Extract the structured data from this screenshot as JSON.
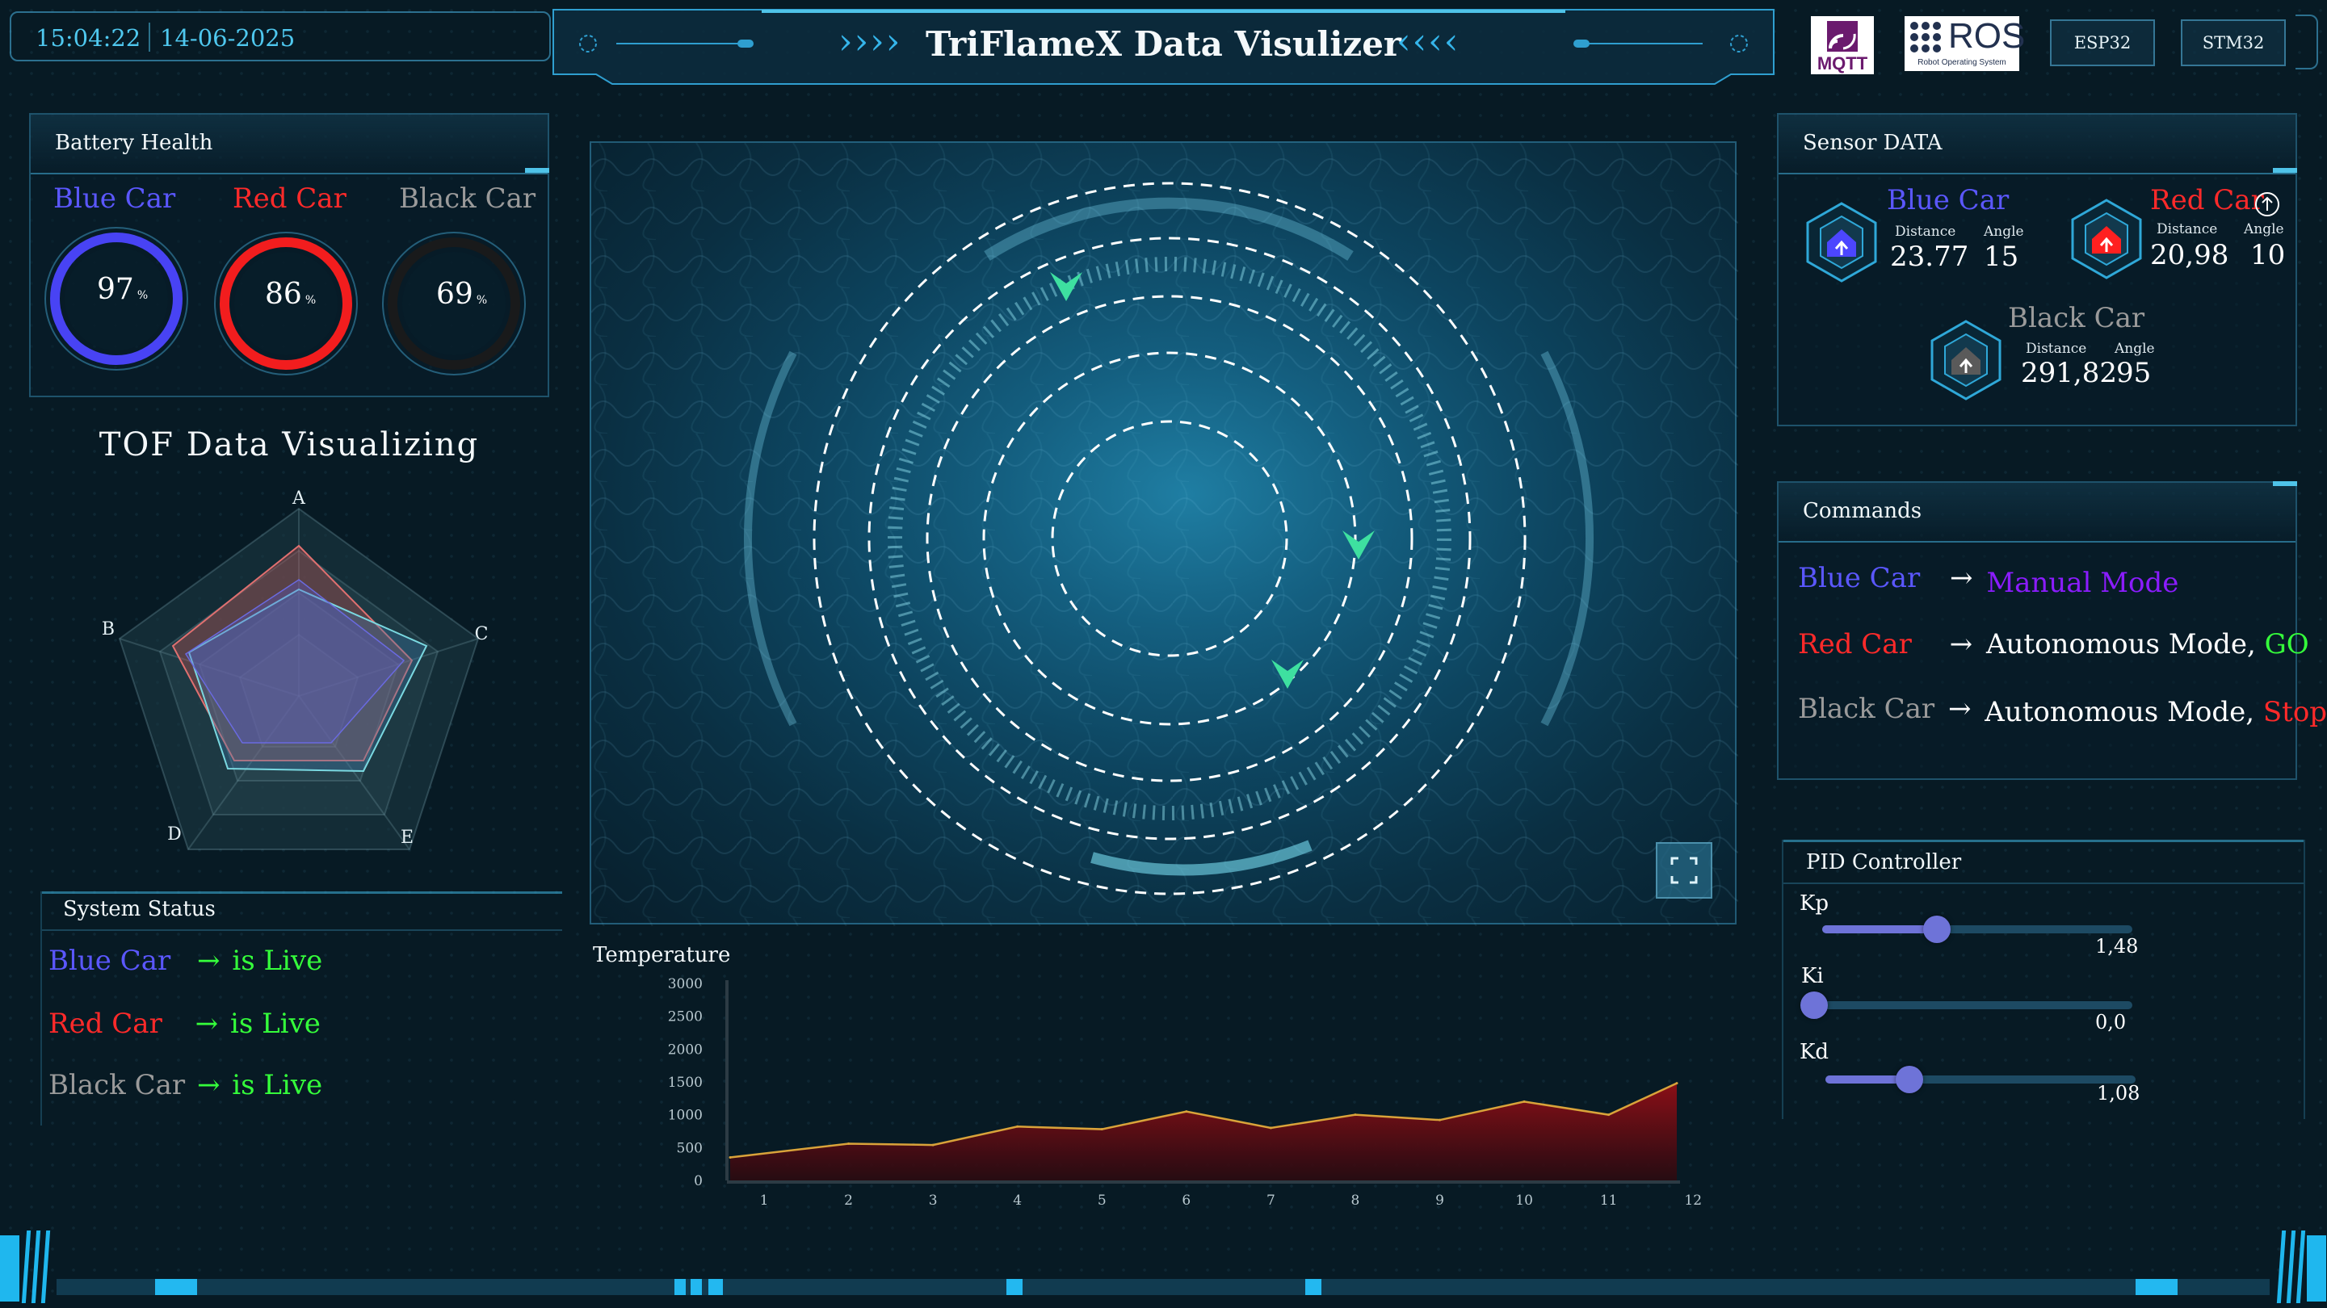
{
  "header": {
    "time": "15:04:22",
    "date": "14-06-2025",
    "title": "TriFlameX Data Visulizer",
    "logo_mqtt": "MQTT",
    "logo_ros": "ROS",
    "logo_ros_sub": "Robot Operating System",
    "buttons": [
      "ESP32",
      "STM32"
    ]
  },
  "battery": {
    "title": "Battery Health",
    "cars": [
      {
        "name": "Blue Car",
        "value": "97",
        "unit": "%",
        "level": 0.97,
        "color": "#4c46ff"
      },
      {
        "name": "Red Car",
        "value": "86",
        "unit": "%",
        "level": 0.86,
        "color": "#ff1e1e"
      },
      {
        "name": "Black Car",
        "value": "69",
        "unit": "%",
        "level": 0.69,
        "color": "#1a1a1a"
      }
    ]
  },
  "tof": {
    "title": "TOF Data Visualizing",
    "axes": [
      "A",
      "B",
      "C",
      "D",
      "E"
    ]
  },
  "system_status": {
    "title": "System Status",
    "rows": [
      {
        "car": "Blue Car",
        "arrow": "→",
        "status": "is Live"
      },
      {
        "car": "Red Car",
        "arrow": "→",
        "status": "is Live"
      },
      {
        "car": "Black Car",
        "arrow": "→",
        "status": "is Live"
      }
    ]
  },
  "sensor": {
    "title": "Sensor DATA",
    "distance_label": "Distance",
    "angle_label": "Angle",
    "cars": [
      {
        "name": "Blue Car",
        "distance": "23.77",
        "angle": "15"
      },
      {
        "name": "Red Car",
        "distance": "20,98",
        "angle": "10"
      },
      {
        "name": "Black Car",
        "distance": "291,82",
        "angle": "95"
      }
    ]
  },
  "commands": {
    "title": "Commands",
    "rows": [
      {
        "car": "Blue Car",
        "arrow": "→",
        "mode": "Manual Mode",
        "action": ""
      },
      {
        "car": "Red Car",
        "arrow": "→",
        "mode": "Autonomous Mode,",
        "action": "GO"
      },
      {
        "car": "Black Car",
        "arrow": "→",
        "mode": "Autonomous Mode,",
        "action": "Stop"
      }
    ]
  },
  "pid": {
    "title": "PID Controller",
    "params": [
      {
        "label": "Kp",
        "value": "1,48",
        "level": 0.37
      },
      {
        "label": "Ki",
        "value": "0,0",
        "level": 0.0
      },
      {
        "label": "Kd",
        "value": "1,08",
        "level": 0.27
      }
    ]
  },
  "chart_data": {
    "type": "area",
    "title": "Temperature",
    "x": [
      1,
      2,
      3,
      4,
      5,
      6,
      7,
      8,
      9,
      10,
      11,
      12
    ],
    "xticks": [
      "1",
      "2",
      "3",
      "4",
      "5",
      "6",
      "7",
      "8",
      "9",
      "10",
      "11",
      "12"
    ],
    "yticks": [
      "0",
      "500",
      "1000",
      "1500",
      "2000",
      "2500",
      "3000"
    ],
    "series": [
      {
        "values": [
          350,
          560,
          540,
          820,
          780,
          1050,
          800,
          1000,
          920,
          1200,
          1000,
          1480
        ]
      }
    ],
    "ylim": [
      0,
      3000
    ],
    "colors": {
      "line": "#d9a33a",
      "fill": "#8b0f17"
    }
  }
}
